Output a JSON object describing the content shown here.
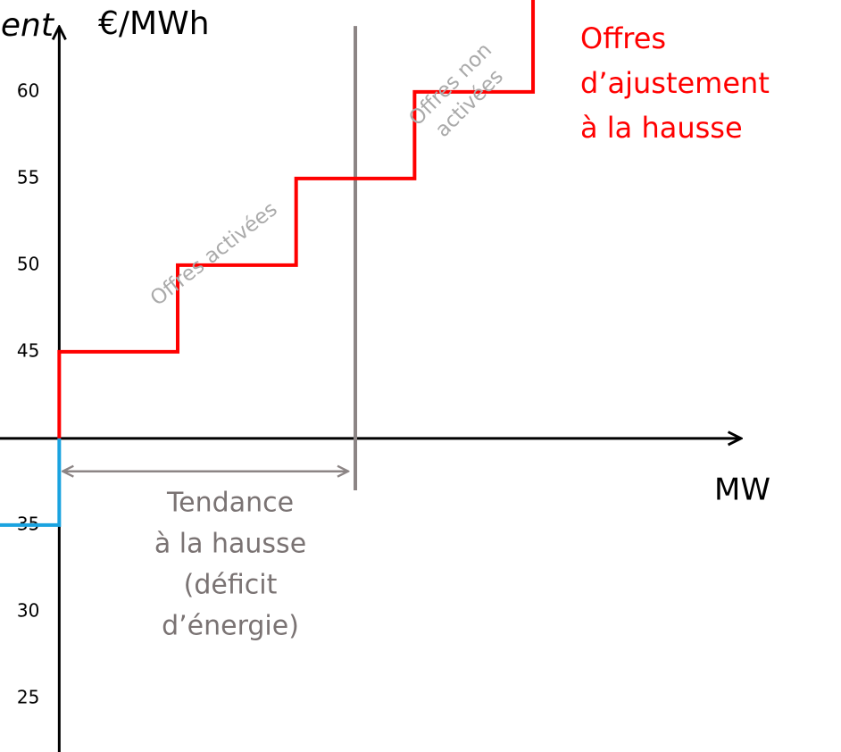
{
  "chart_data": {
    "type": "line",
    "y_unit_label": "€/MWh",
    "y_axis_label_fragment": "ent",
    "x_axis_label": "MW",
    "xlim": [
      -0.5,
      6.6
    ],
    "ylim": [
      21.9,
      65.3
    ],
    "yticks": [
      25,
      30,
      35,
      45,
      50,
      55,
      60
    ],
    "x_axis_at": 40,
    "series": [
      {
        "color": "#ff0000",
        "x": [
          0,
          0,
          1,
          1,
          2,
          2,
          3,
          3,
          4,
          4
        ],
        "values": [
          40,
          45,
          45,
          50,
          50,
          55,
          55,
          60,
          60,
          65.3
        ]
      },
      {
        "color": "#1aa3e0",
        "x": [
          0,
          0,
          -0.5
        ],
        "values": [
          40,
          35,
          35
        ]
      }
    ],
    "reference_line": {
      "x": 2.5,
      "y": [
        37,
        63.8
      ],
      "color": "#8c8585"
    },
    "range_arrow": {
      "x": [
        0,
        2.5
      ],
      "y": 38.1,
      "color": "#8c8585"
    },
    "series_label": {
      "lines": [
        "Offres",
        "d’ajustement",
        "à la hausse"
      ],
      "color": "#ff0000"
    },
    "trend_label": {
      "lines": [
        "Tendance",
        "à la hausse",
        "(déficit",
        "d’énergie)"
      ],
      "color": "#7a7373"
    },
    "activated_label": "Offres activées",
    "not_activated_label": [
      "Offres non",
      "activées"
    ]
  }
}
